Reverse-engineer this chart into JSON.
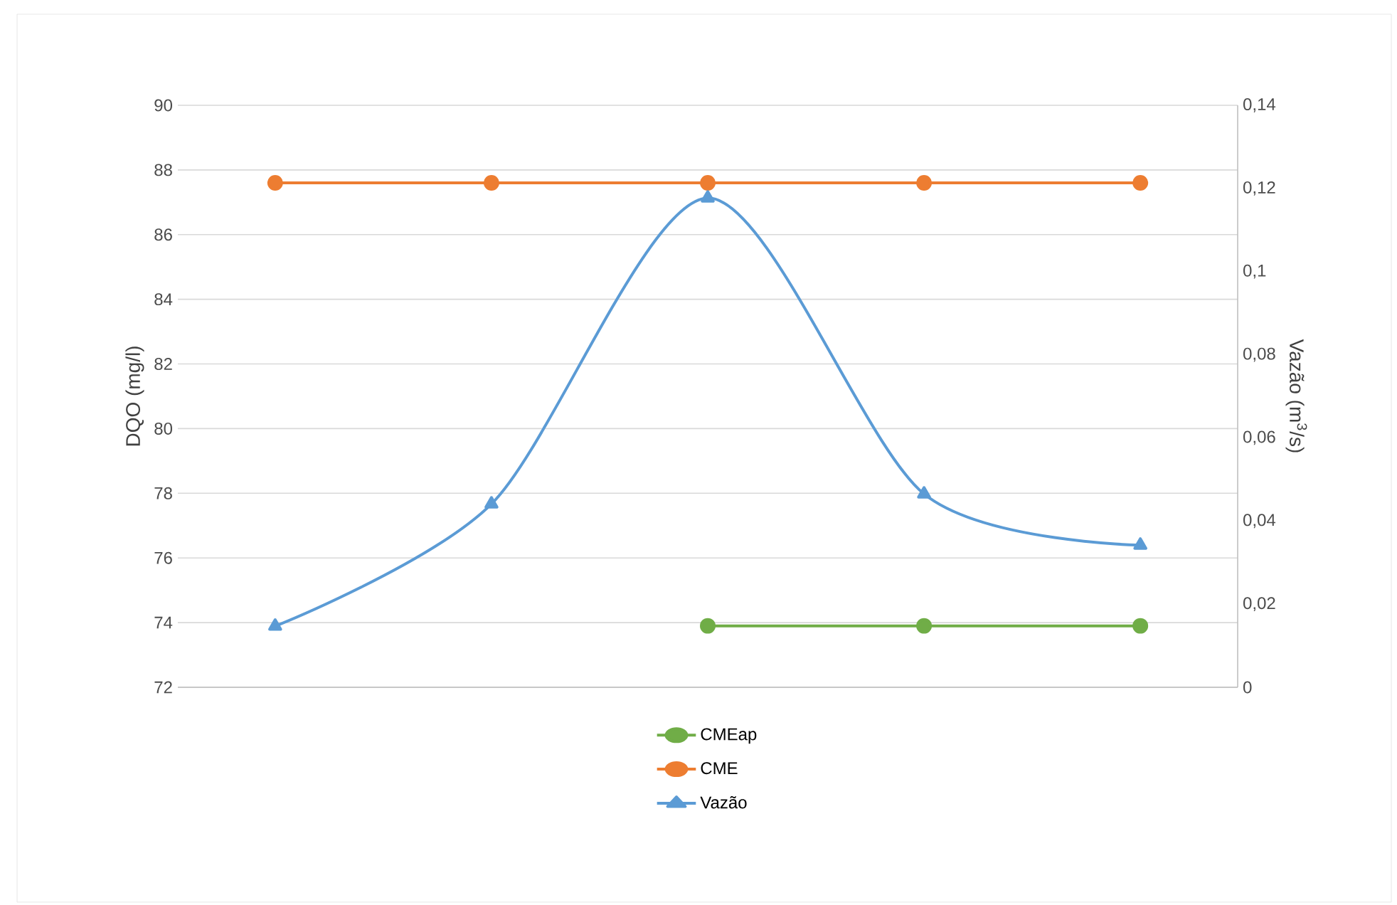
{
  "chart_data": {
    "type": "line",
    "ylabel": "DQO (mg/l)",
    "y2label": "Vazão (m$^{3}$/s)",
    "categories": [
      null,
      null,
      null,
      null,
      null
    ],
    "series": [
      {
        "name": "CMEap",
        "color": "#70ad47",
        "marker": "circle",
        "values": [
          null,
          null,
          73.9,
          73.9,
          73.9
        ]
      },
      {
        "name": "CME",
        "color": "#ed7d31",
        "marker": "circle",
        "values": [
          87.6,
          87.6,
          87.6,
          87.6,
          87.6
        ]
      },
      {
        "name": "Vazão",
        "color": "#5b9bd5",
        "marker": "triangle",
        "axis": "y2",
        "values": [
          0.0147,
          0.0441,
          0.1177,
          0.0465,
          0.0342
        ]
      }
    ],
    "ylim": [
      72,
      90
    ],
    "yticks": [
      72,
      74,
      76,
      78,
      80,
      82,
      84,
      86,
      88,
      90
    ],
    "y2lim": [
      0,
      0.14
    ],
    "y2ticks": [
      0,
      {
        "value": 0.02,
        "label": "0,02"
      },
      {
        "value": 0.04,
        "label": "0,04"
      },
      {
        "value": 0.06,
        "label": "0,06"
      },
      {
        "value": 0.08,
        "label": "0,08"
      },
      {
        "value": 0.1,
        "label": "0,1"
      },
      {
        "value": 0.12,
        "label": "0,12"
      },
      {
        "value": 0.14,
        "label": "0,14"
      }
    ],
    "grid": "y",
    "legend": "bottom"
  }
}
